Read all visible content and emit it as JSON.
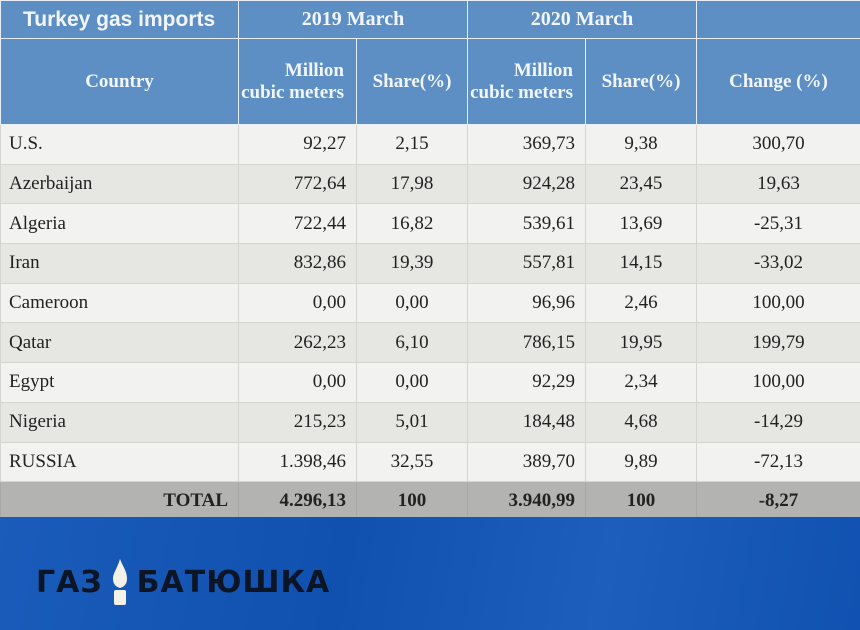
{
  "table": {
    "title": "Turkey gas imports",
    "period_2019": "2019 March",
    "period_2020": "2020 March",
    "col_country": "Country",
    "col_mcm": "Million cubic meters",
    "col_share": "Share(%)",
    "col_change": "Change (%)",
    "rows": [
      {
        "country": "U.S.",
        "mcm_2019": "92,27",
        "share_2019": "2,15",
        "mcm_2020": "369,73",
        "share_2020": "9,38",
        "change": "300,70"
      },
      {
        "country": "Azerbaijan",
        "mcm_2019": "772,64",
        "share_2019": "17,98",
        "mcm_2020": "924,28",
        "share_2020": "23,45",
        "change": "19,63"
      },
      {
        "country": "Algeria",
        "mcm_2019": "722,44",
        "share_2019": "16,82",
        "mcm_2020": "539,61",
        "share_2020": "13,69",
        "change": "-25,31"
      },
      {
        "country": "Iran",
        "mcm_2019": "832,86",
        "share_2019": "19,39",
        "mcm_2020": "557,81",
        "share_2020": "14,15",
        "change": "-33,02"
      },
      {
        "country": "Cameroon",
        "mcm_2019": "0,00",
        "share_2019": "0,00",
        "mcm_2020": "96,96",
        "share_2020": "2,46",
        "change": "100,00"
      },
      {
        "country": "Qatar",
        "mcm_2019": "262,23",
        "share_2019": "6,10",
        "mcm_2020": "786,15",
        "share_2020": "19,95",
        "change": "199,79"
      },
      {
        "country": "Egypt",
        "mcm_2019": "0,00",
        "share_2019": "0,00",
        "mcm_2020": "92,29",
        "share_2020": "2,34",
        "change": "100,00"
      },
      {
        "country": "Nigeria",
        "mcm_2019": "215,23",
        "share_2019": "5,01",
        "mcm_2020": "184,48",
        "share_2020": "4,68",
        "change": "-14,29"
      },
      {
        "country": "RUSSIA",
        "mcm_2019": "1.398,46",
        "share_2019": "32,55",
        "mcm_2020": "389,70",
        "share_2020": "9,89",
        "change": "-72,13"
      }
    ],
    "total": {
      "label": "TOTAL",
      "mcm_2019": "4.296,13",
      "share_2019": "100",
      "mcm_2020": "3.940,99",
      "share_2020": "100",
      "change": "-8,27"
    }
  },
  "brand": {
    "word1": "ГАЗ",
    "word2": "БАТЮШКА",
    "flame_icon": "flame-icon",
    "banner_color": "#1155b8",
    "header_color": "#5d8fc4"
  }
}
